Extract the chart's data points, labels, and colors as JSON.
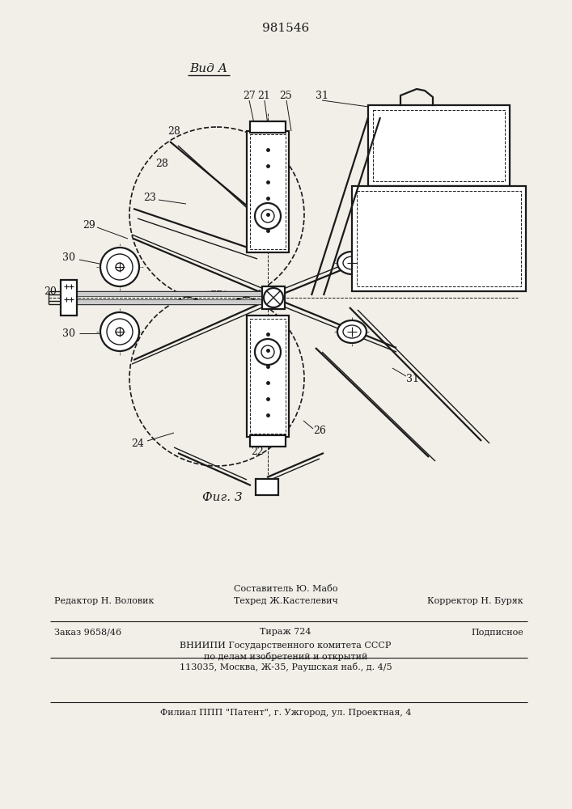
{
  "patent_number": "981546",
  "view_label": "Вид А",
  "fig_label": "Фиг. 3",
  "bg_color": "#f2efe9",
  "line_color": "#1a1a1a",
  "footer_lines": [
    "Составитель Ю. Мабо",
    "Редактор Н. Воловик    Техред Ж.Кастелевич   Корректор Н. Буряк",
    "Заказ 9658/46             Тираж 724               Подписное",
    "ВНИИПИ Государственного комитета СССР",
    "по делам изобретений и открытий",
    "113035, Москва, Ж-35, Раушская наб., д. 4/5",
    "Филиал ППП \"Патент\", г. Ужгород, ул. Проектная, 4"
  ]
}
